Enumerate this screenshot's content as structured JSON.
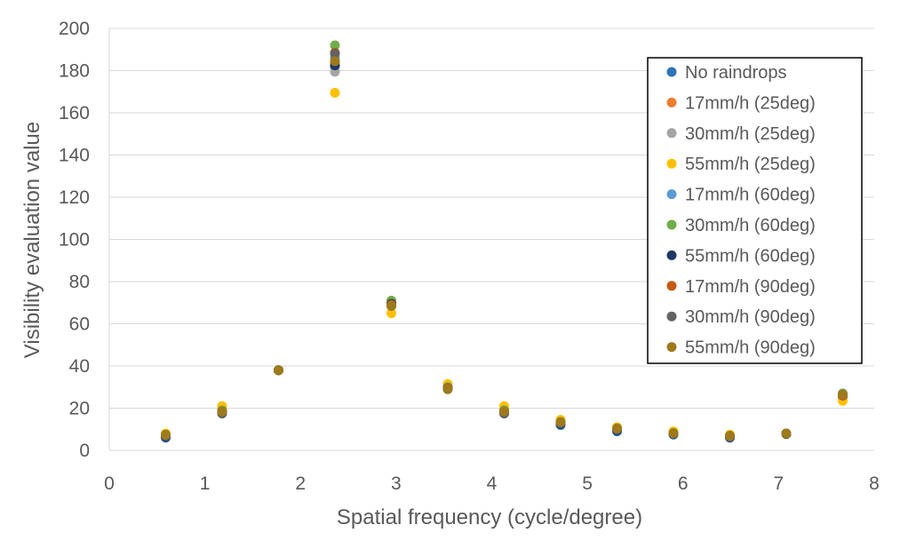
{
  "chart_data": {
    "type": "scatter",
    "title": "",
    "xlabel": "Spatial frequency (cycle/degree)",
    "ylabel": "Visibility evaluation value",
    "xlim": [
      0,
      8
    ],
    "ylim": [
      0,
      200
    ],
    "xticks": [
      0,
      1,
      2,
      3,
      4,
      5,
      6,
      7,
      8
    ],
    "yticks": [
      0,
      20,
      40,
      60,
      80,
      100,
      120,
      140,
      160,
      180,
      200
    ],
    "grid": "horizontal",
    "legend_position": "right",
    "x": [
      0.59,
      1.18,
      1.77,
      2.36,
      2.95,
      3.54,
      4.13,
      4.72,
      5.31,
      5.9,
      6.49,
      7.08,
      7.67
    ],
    "series": [
      {
        "name": "No raindrops",
        "color": "#2E75B6",
        "values": [
          6,
          18,
          38,
          182,
          70,
          29.5,
          18,
          12,
          9,
          7.5,
          6,
          7.8,
          26
        ]
      },
      {
        "name": "17mm/h (25deg)",
        "color": "#ED7D31",
        "values": [
          7,
          19,
          38,
          184,
          69,
          30,
          19,
          13,
          10,
          8,
          6.5,
          8,
          25
        ]
      },
      {
        "name": "30mm/h (25deg)",
        "color": "#A5A5A5",
        "values": [
          7,
          19,
          38,
          179.5,
          68.5,
          30,
          19,
          13,
          10,
          8,
          6.5,
          8,
          25
        ]
      },
      {
        "name": "55mm/h (25deg)",
        "color": "#FFC000",
        "values": [
          8,
          21,
          38,
          169.5,
          65,
          31.5,
          21,
          14.5,
          11,
          9,
          7.5,
          8,
          23.5
        ]
      },
      {
        "name": "17mm/h (60deg)",
        "color": "#5B9BD5",
        "values": [
          6.5,
          18.5,
          38,
          186,
          69.5,
          30,
          18.5,
          12.5,
          9.5,
          7.8,
          6.2,
          7.8,
          26
        ]
      },
      {
        "name": "30mm/h (60deg)",
        "color": "#70AD47",
        "values": [
          7,
          19,
          38,
          192,
          71,
          30,
          19,
          13,
          10,
          8,
          6.5,
          8,
          27
        ]
      },
      {
        "name": "55mm/h (60deg)",
        "color": "#1F3864",
        "values": [
          6.5,
          18,
          38,
          182.5,
          69.5,
          29.5,
          18,
          12.5,
          9.5,
          7.8,
          6.2,
          7.8,
          26
        ]
      },
      {
        "name": "17mm/h (90deg)",
        "color": "#C55A11",
        "values": [
          7,
          18.5,
          38,
          188.5,
          69,
          29.5,
          18.5,
          13,
          10,
          8,
          6.5,
          8,
          26
        ]
      },
      {
        "name": "30mm/h (90deg)",
        "color": "#636363",
        "values": [
          7,
          17.5,
          38,
          188,
          68.5,
          29,
          17.5,
          13,
          10,
          8,
          6.5,
          8,
          26.5
        ]
      },
      {
        "name": "55mm/h (90deg)",
        "color": "#9E7A1C",
        "values": [
          7.5,
          18.5,
          38,
          184.5,
          68.5,
          29,
          18.5,
          13.5,
          10.5,
          8.2,
          7,
          8,
          26.5
        ]
      }
    ]
  }
}
